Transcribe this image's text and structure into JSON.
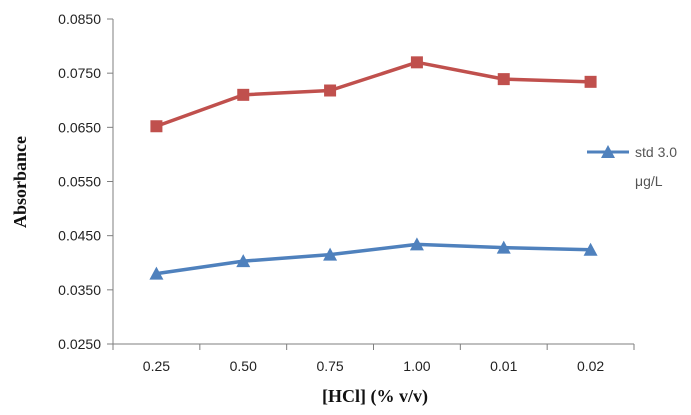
{
  "chart_data": {
    "type": "line",
    "title": "",
    "xlabel": "[HCl]  (% v/v)",
    "ylabel": "Absorbance",
    "categories": [
      "0.25",
      "0.50",
      "0.75",
      "1.00",
      "0.01",
      "0.02"
    ],
    "ylim": [
      0.025,
      0.085
    ],
    "yticks": [
      "0.0850",
      "0.0750",
      "0.0650",
      "0.0550",
      "0.0450",
      "0.0350",
      "0.0250"
    ],
    "ytick_values": [
      0.085,
      0.075,
      0.065,
      0.055,
      0.045,
      0.035,
      0.025
    ],
    "grid": false,
    "legend_position": "right",
    "series": [
      {
        "name": "",
        "color": "#c0504d",
        "marker": "square",
        "values": [
          0.0652,
          0.071,
          0.0718,
          0.077,
          0.0739,
          0.0734
        ]
      },
      {
        "name": "std 3.0 μg/L",
        "color": "#4f81bd",
        "marker": "triangle",
        "values": [
          0.038,
          0.0403,
          0.0415,
          0.0434,
          0.0428,
          0.0424
        ]
      }
    ]
  },
  "legend": {
    "line1": "std 3.0",
    "line2": "μg/L"
  }
}
